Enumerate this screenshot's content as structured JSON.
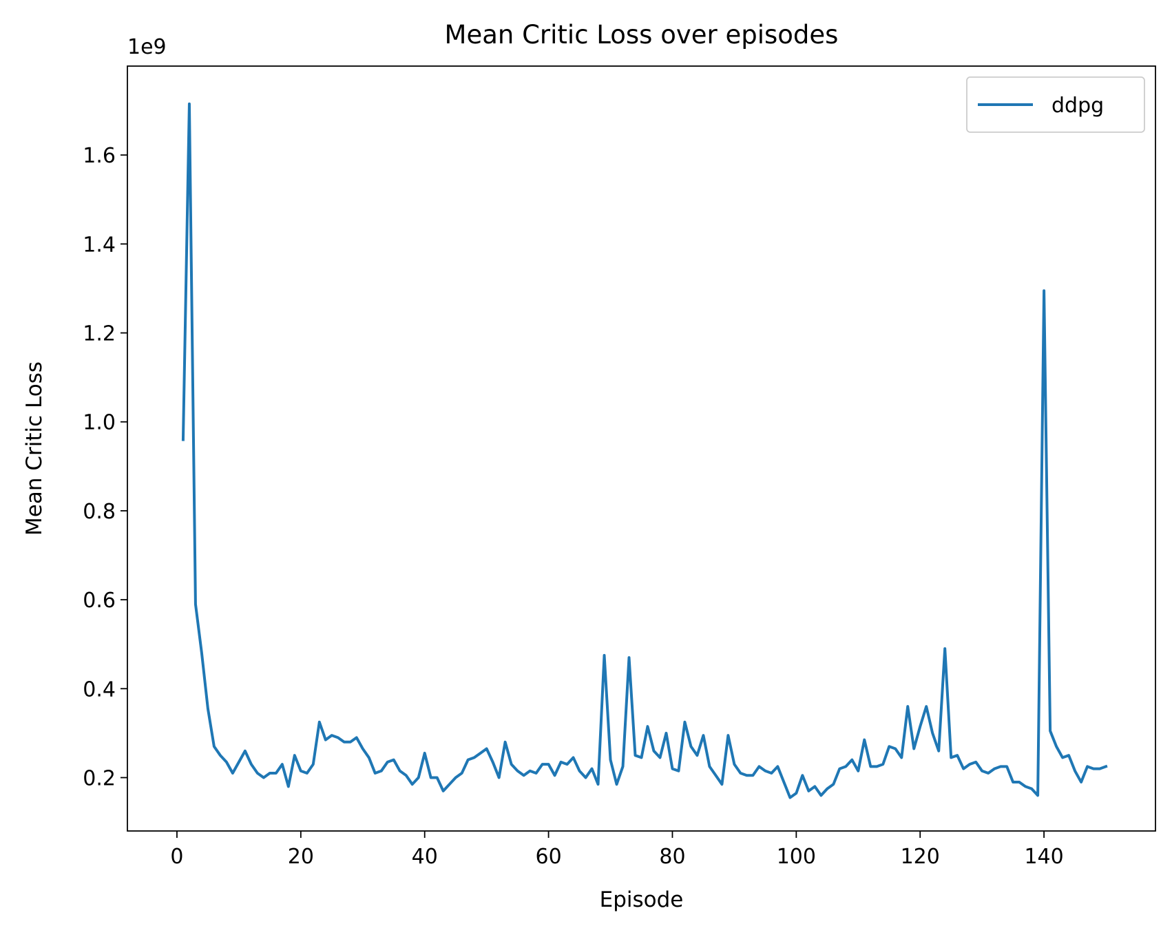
{
  "chart_data": {
    "type": "line",
    "title": "Mean Critic Loss over episodes",
    "xlabel": "Episode",
    "ylabel": "Mean Critic Loss",
    "y_scale_label": "1e9",
    "xlim": [
      -8,
      158
    ],
    "ylim": [
      0.08,
      1.8
    ],
    "x_ticks": [
      0,
      20,
      40,
      60,
      80,
      100,
      120,
      140
    ],
    "x_tick_labels": [
      "0",
      "20",
      "40",
      "60",
      "80",
      "100",
      "120",
      "140"
    ],
    "y_ticks": [
      0.2,
      0.4,
      0.6,
      0.8,
      1.0,
      1.2,
      1.4,
      1.6
    ],
    "y_tick_labels": [
      "0.2",
      "0.4",
      "0.6",
      "0.8",
      "1.0",
      "1.2",
      "1.4",
      "1.6"
    ],
    "grid": false,
    "legend": "top-right",
    "line_color": "#1f77b4",
    "series": [
      {
        "name": "ddpg",
        "x_start": 1,
        "values": [
          0.96,
          1.715,
          0.59,
          0.48,
          0.355,
          0.27,
          0.25,
          0.235,
          0.21,
          0.235,
          0.26,
          0.23,
          0.21,
          0.2,
          0.21,
          0.21,
          0.23,
          0.18,
          0.25,
          0.215,
          0.21,
          0.23,
          0.325,
          0.285,
          0.295,
          0.29,
          0.28,
          0.28,
          0.29,
          0.265,
          0.245,
          0.21,
          0.215,
          0.235,
          0.24,
          0.215,
          0.205,
          0.185,
          0.2,
          0.255,
          0.2,
          0.2,
          0.17,
          0.185,
          0.2,
          0.21,
          0.24,
          0.245,
          0.255,
          0.265,
          0.235,
          0.2,
          0.28,
          0.23,
          0.215,
          0.205,
          0.215,
          0.21,
          0.23,
          0.23,
          0.205,
          0.235,
          0.23,
          0.245,
          0.215,
          0.2,
          0.22,
          0.185,
          0.475,
          0.24,
          0.185,
          0.225,
          0.47,
          0.25,
          0.245,
          0.315,
          0.26,
          0.245,
          0.3,
          0.22,
          0.215,
          0.325,
          0.27,
          0.25,
          0.295,
          0.225,
          0.205,
          0.185,
          0.295,
          0.23,
          0.21,
          0.205,
          0.205,
          0.225,
          0.215,
          0.21,
          0.225,
          0.19,
          0.155,
          0.165,
          0.205,
          0.17,
          0.18,
          0.16,
          0.175,
          0.185,
          0.22,
          0.225,
          0.24,
          0.215,
          0.285,
          0.225,
          0.225,
          0.23,
          0.27,
          0.265,
          0.245,
          0.36,
          0.265,
          0.315,
          0.36,
          0.3,
          0.26,
          0.49,
          0.245,
          0.25,
          0.22,
          0.23,
          0.235,
          0.215,
          0.21,
          0.22,
          0.225,
          0.225,
          0.19,
          0.19,
          0.18,
          0.175,
          0.16,
          1.295,
          0.305,
          0.27,
          0.245,
          0.25,
          0.215,
          0.19,
          0.225,
          0.22,
          0.22,
          0.225
        ]
      }
    ]
  }
}
